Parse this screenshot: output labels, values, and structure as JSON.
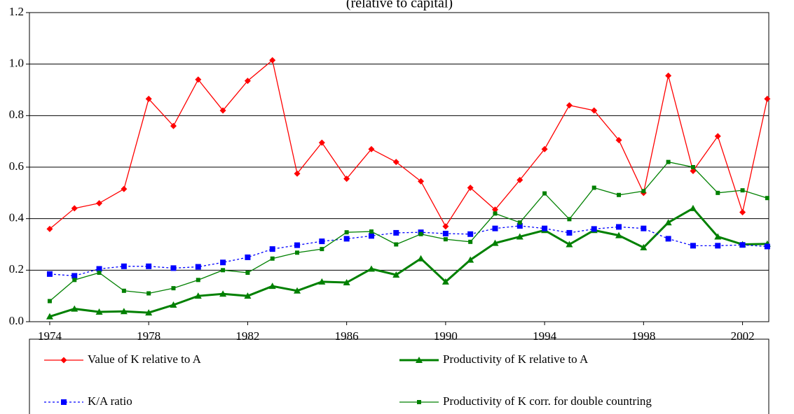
{
  "chart_data": {
    "type": "line",
    "title": "(relative to capital)",
    "x": [
      1974,
      1975,
      1976,
      1977,
      1978,
      1979,
      1980,
      1981,
      1982,
      1983,
      1984,
      1985,
      1986,
      1987,
      1988,
      1989,
      1990,
      1991,
      1992,
      1993,
      1994,
      1995,
      1996,
      1997,
      1998,
      1999,
      2000,
      2001,
      2002,
      2003
    ],
    "xlim": [
      1973.18,
      2003.06
    ],
    "xticks": [
      1974,
      1978,
      1982,
      1986,
      1990,
      1994,
      1998,
      2002
    ],
    "ylim": [
      0,
      1.2
    ],
    "yticks": [
      {
        "value": 0,
        "label": "0.0"
      },
      {
        "value": 0.2,
        "label": "0.2"
      },
      {
        "value": 0.4,
        "label": "0.4"
      },
      {
        "value": 0.6,
        "label": "0.6"
      },
      {
        "value": 0.8,
        "label": "0.8"
      },
      {
        "value": 1.0,
        "label": "1.0"
      },
      {
        "value": 1.2,
        "label": "1.2"
      }
    ],
    "grid": true,
    "legend": "bottom",
    "series": [
      {
        "name": "Value of K relative to A",
        "color": "#ff0000",
        "marker": "diamond",
        "width": 1.3,
        "dashed": false,
        "values": [
          0.36,
          0.44,
          0.46,
          0.515,
          0.865,
          0.76,
          0.94,
          0.82,
          0.935,
          1.015,
          0.575,
          0.695,
          0.555,
          0.67,
          0.62,
          0.545,
          0.37,
          0.52,
          0.435,
          0.55,
          0.67,
          0.84,
          0.82,
          0.705,
          0.5,
          0.955,
          0.585,
          0.72,
          0.425,
          0.865
        ]
      },
      {
        "name": "Productivity of K relative to A",
        "color": "#008000",
        "marker": "triangle",
        "width": 3,
        "dashed": false,
        "values": [
          0.02,
          0.05,
          0.038,
          0.04,
          0.035,
          0.065,
          0.1,
          0.108,
          0.1,
          0.138,
          0.12,
          0.155,
          0.152,
          0.205,
          0.182,
          0.245,
          0.155,
          0.24,
          0.305,
          0.33,
          0.355,
          0.3,
          0.355,
          0.335,
          0.288,
          0.385,
          0.44,
          0.33,
          0.3,
          0.302
        ]
      },
      {
        "name": "K/A ratio",
        "color": "#0000ff",
        "marker": "square",
        "width": 1.3,
        "dashed": true,
        "values": [
          0.185,
          0.178,
          0.205,
          0.215,
          0.215,
          0.208,
          0.213,
          0.23,
          0.25,
          0.282,
          0.297,
          0.312,
          0.322,
          0.333,
          0.345,
          0.347,
          0.342,
          0.34,
          0.362,
          0.372,
          0.362,
          0.345,
          0.36,
          0.368,
          0.362,
          0.322,
          0.295,
          0.295,
          0.298,
          0.292
        ]
      },
      {
        "name": "Productivity of K corr. for double countring",
        "color": "#008000",
        "marker": "smallsquare",
        "width": 1.3,
        "dashed": false,
        "values": [
          0.08,
          0.162,
          0.19,
          0.12,
          0.11,
          0.13,
          0.162,
          0.2,
          0.19,
          0.245,
          0.268,
          0.282,
          0.347,
          0.35,
          0.3,
          0.34,
          0.32,
          0.31,
          0.42,
          0.385,
          0.498,
          0.398,
          0.52,
          0.492,
          0.507,
          0.62,
          0.6,
          0.5,
          0.51,
          0.48
        ]
      }
    ]
  }
}
